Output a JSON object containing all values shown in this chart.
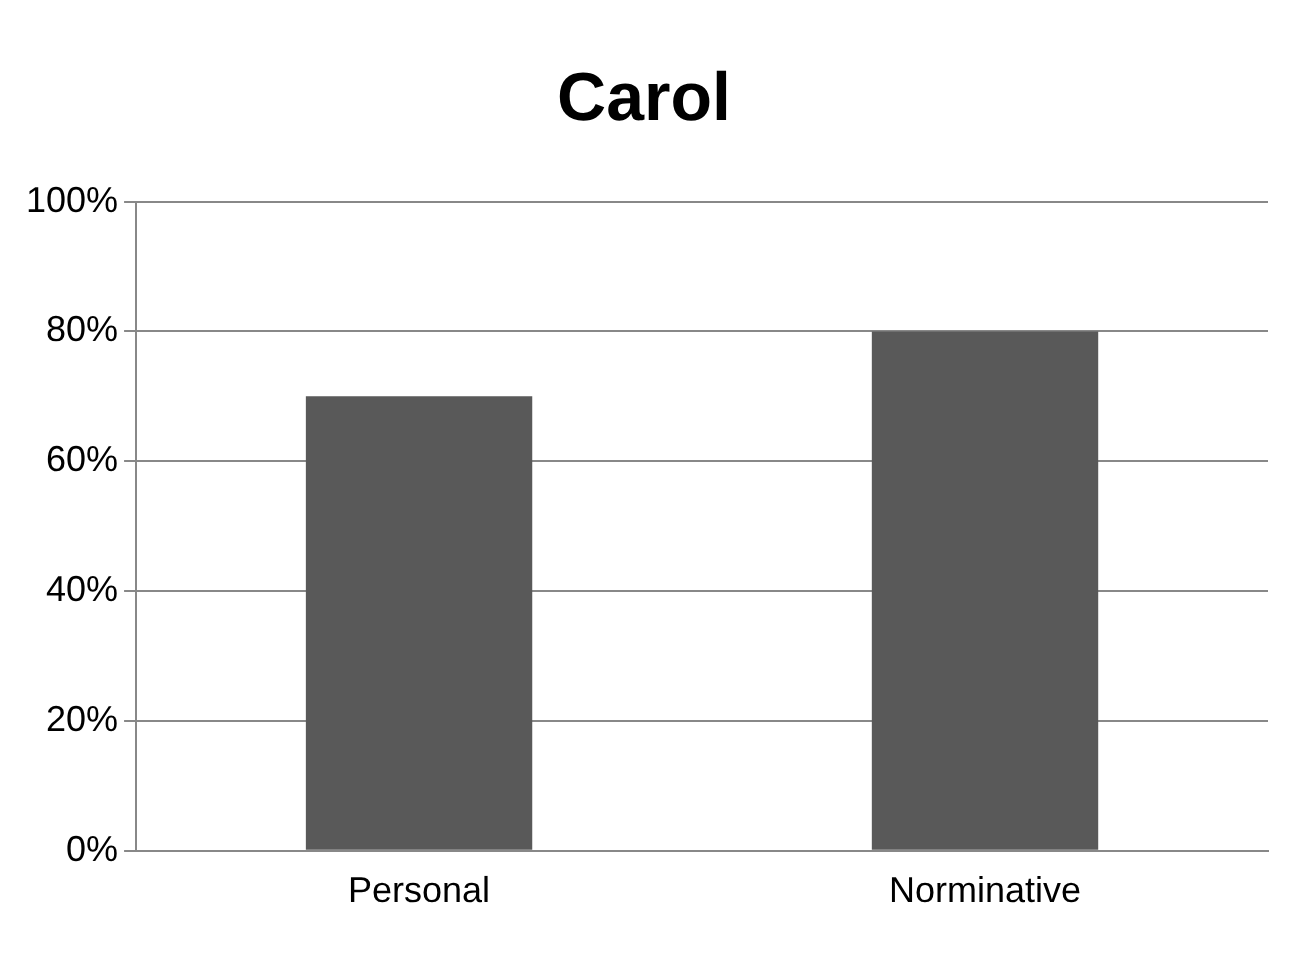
{
  "chart_data": {
    "type": "bar",
    "title": "Carol",
    "categories": [
      "Personal",
      "Norminative"
    ],
    "values": [
      70,
      80
    ],
    "color": "#595959",
    "ylim": [
      0,
      100
    ],
    "yticks": [
      {
        "value": 0,
        "label": "0%"
      },
      {
        "value": 20,
        "label": "20%"
      },
      {
        "value": 40,
        "label": "40%"
      },
      {
        "value": 60,
        "label": "60%"
      },
      {
        "value": 80,
        "label": "80%"
      },
      {
        "value": 100,
        "label": "100%"
      }
    ],
    "grid": "y",
    "legend": false
  }
}
